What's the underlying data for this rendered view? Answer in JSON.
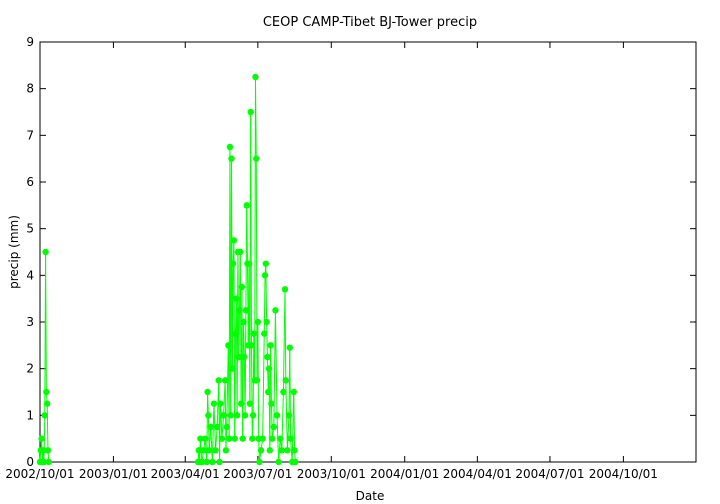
{
  "chart_data": {
    "type": "line",
    "title": "CEOP CAMP-Tibet BJ-Tower  precip",
    "xlabel": "Date",
    "ylabel": "precip (mm)",
    "x_ticks": [
      "2002/10/01",
      "2003/01/01",
      "2003/04/01",
      "2003/07/01",
      "2003/10/01",
      "2004/01/01",
      "2004/04/01",
      "2004/07/01",
      "2004/10/01"
    ],
    "xlim": [
      "2002/10/01",
      "2004/12/31"
    ],
    "y_ticks": [
      "0",
      "1",
      "2",
      "3",
      "4",
      "5",
      "6",
      "7",
      "8",
      "9"
    ],
    "ylim": [
      0,
      9
    ],
    "grid": false,
    "legend": "none",
    "series_color": "#00ff00",
    "series": [
      {
        "points": [
          [
            "2002/10/01",
            0.0
          ],
          [
            "2002/10/02",
            0.25
          ],
          [
            "2002/10/03",
            0.5
          ],
          [
            "2002/10/04",
            0.0
          ],
          [
            "2002/10/05",
            0.25
          ],
          [
            "2002/10/06",
            0.0
          ],
          [
            "2002/10/07",
            1.0
          ],
          [
            "2002/10/08",
            4.5
          ],
          [
            "2002/10/09",
            1.5
          ],
          [
            "2002/10/10",
            1.25
          ],
          [
            "2002/10/11",
            0.25
          ],
          [
            "2002/10/12",
            0.0
          ],
          [
            "2003/04/17",
            0.0
          ],
          [
            "2003/04/18",
            0.25
          ],
          [
            "2003/04/19",
            0.0
          ],
          [
            "2003/04/20",
            0.5
          ],
          [
            "2003/04/22",
            0.0
          ],
          [
            "2003/04/24",
            0.25
          ],
          [
            "2003/04/26",
            0.5
          ],
          [
            "2003/04/28",
            0.0
          ],
          [
            "2003/04/29",
            1.5
          ],
          [
            "2003/04/30",
            1.0
          ],
          [
            "2003/05/01",
            0.25
          ],
          [
            "2003/05/03",
            0.75
          ],
          [
            "2003/05/05",
            0.0
          ],
          [
            "2003/05/07",
            1.25
          ],
          [
            "2003/05/09",
            0.25
          ],
          [
            "2003/05/11",
            0.75
          ],
          [
            "2003/05/13",
            1.75
          ],
          [
            "2003/05/14",
            0.0
          ],
          [
            "2003/05/15",
            1.25
          ],
          [
            "2003/05/17",
            0.5
          ],
          [
            "2003/05/19",
            1.0
          ],
          [
            "2003/05/21",
            1.75
          ],
          [
            "2003/05/22",
            0.25
          ],
          [
            "2003/05/23",
            0.75
          ],
          [
            "2003/05/25",
            2.5
          ],
          [
            "2003/05/26",
            0.5
          ],
          [
            "2003/05/27",
            6.75
          ],
          [
            "2003/05/28",
            1.0
          ],
          [
            "2003/05/29",
            6.5
          ],
          [
            "2003/05/30",
            2.0
          ],
          [
            "2003/05/31",
            4.25
          ],
          [
            "2003/06/01",
            4.75
          ],
          [
            "2003/06/02",
            0.5
          ],
          [
            "2003/06/03",
            2.75
          ],
          [
            "2003/06/04",
            3.5
          ],
          [
            "2003/06/05",
            1.0
          ],
          [
            "2003/06/06",
            4.5
          ],
          [
            "2003/06/07",
            2.25
          ],
          [
            "2003/06/08",
            3.25
          ],
          [
            "2003/06/09",
            4.5
          ],
          [
            "2003/06/10",
            1.25
          ],
          [
            "2003/06/11",
            3.75
          ],
          [
            "2003/06/12",
            0.5
          ],
          [
            "2003/06/13",
            3.0
          ],
          [
            "2003/06/14",
            2.25
          ],
          [
            "2003/06/15",
            1.0
          ],
          [
            "2003/06/16",
            3.25
          ],
          [
            "2003/06/17",
            5.5
          ],
          [
            "2003/06/18",
            4.25
          ],
          [
            "2003/06/19",
            2.5
          ],
          [
            "2003/06/20",
            4.25
          ],
          [
            "2003/06/21",
            1.25
          ],
          [
            "2003/06/22",
            7.5
          ],
          [
            "2003/06/23",
            2.5
          ],
          [
            "2003/06/24",
            0.5
          ],
          [
            "2003/06/25",
            1.0
          ],
          [
            "2003/06/26",
            2.75
          ],
          [
            "2003/06/27",
            1.75
          ],
          [
            "2003/06/28",
            8.25
          ],
          [
            "2003/06/29",
            6.5
          ],
          [
            "2003/06/30",
            1.75
          ],
          [
            "2003/07/01",
            3.0
          ],
          [
            "2003/07/02",
            0.5
          ],
          [
            "2003/07/03",
            0.0
          ],
          [
            "2003/07/05",
            0.25
          ],
          [
            "2003/07/07",
            0.5
          ],
          [
            "2003/07/09",
            2.75
          ],
          [
            "2003/07/10",
            4.0
          ],
          [
            "2003/07/11",
            4.25
          ],
          [
            "2003/07/12",
            3.0
          ],
          [
            "2003/07/13",
            2.25
          ],
          [
            "2003/07/14",
            1.5
          ],
          [
            "2003/07/15",
            2.0
          ],
          [
            "2003/07/16",
            0.25
          ],
          [
            "2003/07/17",
            2.5
          ],
          [
            "2003/07/18",
            1.25
          ],
          [
            "2003/07/19",
            0.5
          ],
          [
            "2003/07/21",
            0.75
          ],
          [
            "2003/07/23",
            3.25
          ],
          [
            "2003/07/25",
            1.0
          ],
          [
            "2003/07/27",
            0.0
          ],
          [
            "2003/07/29",
            0.5
          ],
          [
            "2003/07/31",
            0.25
          ],
          [
            "2003/08/02",
            1.5
          ],
          [
            "2003/08/04",
            3.7
          ],
          [
            "2003/08/05",
            1.75
          ],
          [
            "2003/08/07",
            0.25
          ],
          [
            "2003/08/09",
            1.0
          ],
          [
            "2003/08/10",
            2.45
          ],
          [
            "2003/08/11",
            0.5
          ],
          [
            "2003/08/13",
            0.0
          ],
          [
            "2003/08/15",
            1.5
          ],
          [
            "2003/08/16",
            0.25
          ],
          [
            "2003/08/17",
            0.0
          ]
        ]
      }
    ]
  }
}
